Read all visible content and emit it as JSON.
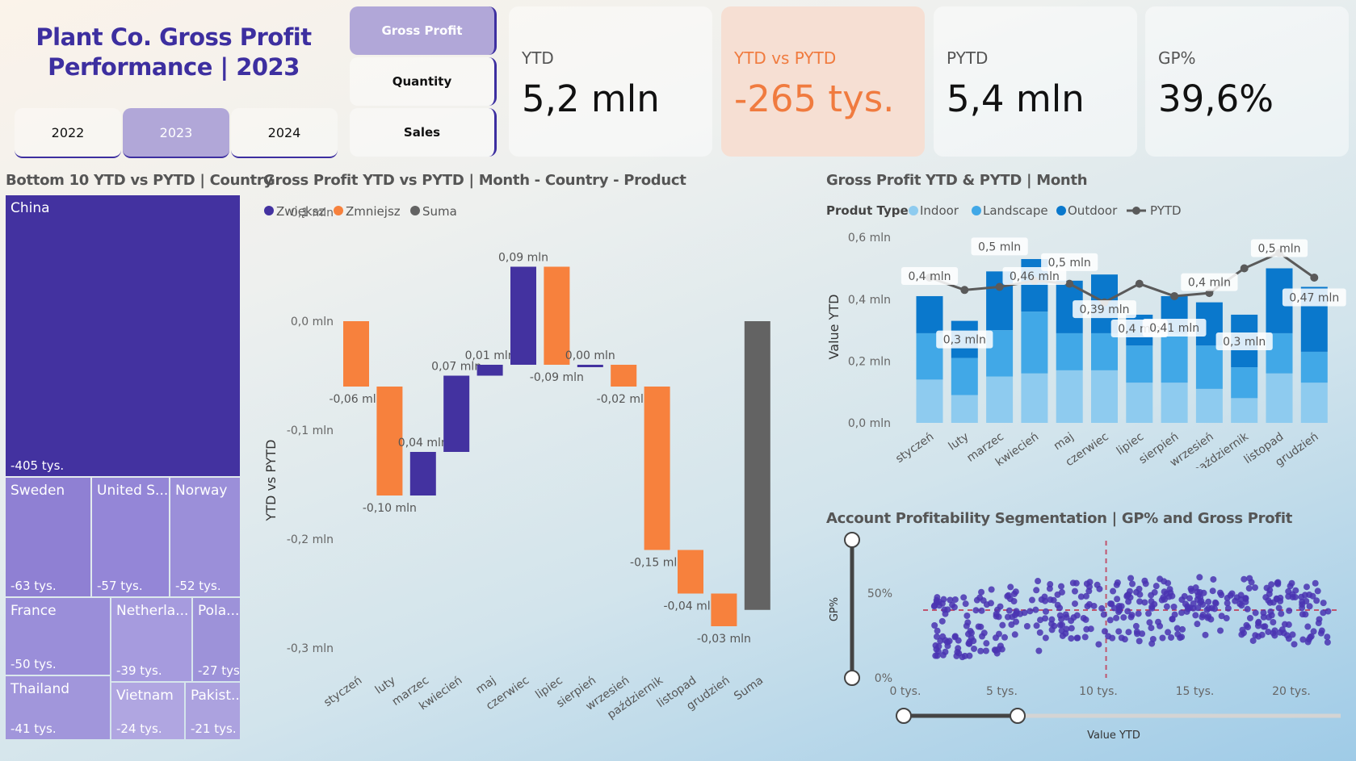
{
  "header": {
    "title_line1": "Plant Co. Gross Profit",
    "title_line2": "Performance | 2023",
    "years": [
      "2022",
      "2023",
      "2024"
    ],
    "active_year": "2023",
    "metrics": [
      "Gross Profit",
      "Quantity",
      "Sales"
    ],
    "active_metric": "Gross Profit"
  },
  "kpis": [
    {
      "label": "YTD",
      "value": "5,2 mln",
      "negative": false
    },
    {
      "label": "YTD vs PYTD",
      "value": "-265 tys.",
      "negative": true
    },
    {
      "label": "PYTD",
      "value": "5,4 mln",
      "negative": false
    },
    {
      "label": "GP%",
      "value": "39,6%",
      "negative": false
    }
  ],
  "treemap": {
    "title": "Bottom 10 YTD vs PYTD | Country",
    "tiles": [
      {
        "name": "China",
        "value": "-405 tys."
      },
      {
        "name": "Sweden",
        "value": "-63 tys."
      },
      {
        "name": "United S...",
        "value": "-57 tys."
      },
      {
        "name": "Norway",
        "value": "-52 tys."
      },
      {
        "name": "France",
        "value": "-50 tys."
      },
      {
        "name": "Netherla...",
        "value": "-39 tys."
      },
      {
        "name": "Pola...",
        "value": "-27 tys."
      },
      {
        "name": "Thailand",
        "value": "-41 tys."
      },
      {
        "name": "Vietnam",
        "value": "-24 tys."
      },
      {
        "name": "Pakist...",
        "value": "-21 tys."
      }
    ]
  },
  "waterfall_title": "Gross Profit YTD vs PYTD | Month - Country - Product",
  "combo_title": "Gross Profit YTD & PYTD | Month",
  "scatter_title": "Account Profitability Segmentation | GP% and Gross Profit",
  "chart_data": [
    {
      "type": "bar",
      "subtype": "waterfall",
      "title": "Gross Profit YTD vs PYTD | Month - Country - Product",
      "ylabel": "YTD vs PYTD",
      "legend": [
        "Zwiększ",
        "Zmniejsz",
        "Suma"
      ],
      "colors": {
        "increase": "#4332a0",
        "decrease": "#f7813d",
        "total": "#636363"
      },
      "categories": [
        "styczeń",
        "luty",
        "marzec",
        "kwiecień",
        "maj",
        "czerwiec",
        "lipiec",
        "sierpień",
        "wrzesień",
        "październik",
        "listopad",
        "grudzień",
        "Suma"
      ],
      "values": [
        -0.06,
        -0.1,
        0.04,
        0.07,
        0.01,
        0.09,
        -0.09,
        0.0,
        -0.02,
        -0.15,
        -0.04,
        -0.03,
        -0.265
      ],
      "labels": [
        "-0,06 mln",
        "-0,10 mln",
        "0,04 mln",
        "0,07 mln",
        "0,01 mln",
        "0,09 mln",
        "-0,09 mln",
        "0,00 mln",
        "-0,02 mln",
        "-0,15 mln",
        "-0,04 mln",
        "-0,03 mln",
        ""
      ],
      "ylim": [
        -0.3,
        0.1
      ],
      "yticks": [
        "0,1 mln",
        "0,0 mln",
        "-0,1 mln",
        "-0,2 mln",
        "-0,3 mln"
      ]
    },
    {
      "type": "bar",
      "subtype": "stacked-bar-with-line",
      "title": "Gross Profit YTD & PYTD | Month",
      "ylabel": "Value YTD",
      "legend_title": "Produt Type",
      "categories": [
        "styczeń",
        "luty",
        "marzec",
        "kwiecień",
        "maj",
        "czerwiec",
        "lipiec",
        "sierpień",
        "wrzesień",
        "październik",
        "listopad",
        "grudzień"
      ],
      "series": [
        {
          "name": "Indoor",
          "color": "#8ecbef",
          "values": [
            0.14,
            0.09,
            0.15,
            0.16,
            0.17,
            0.17,
            0.13,
            0.13,
            0.11,
            0.08,
            0.16,
            0.13
          ]
        },
        {
          "name": "Landscape",
          "color": "#41a8e7",
          "values": [
            0.15,
            0.12,
            0.15,
            0.2,
            0.12,
            0.12,
            0.12,
            0.16,
            0.14,
            0.1,
            0.13,
            0.1
          ]
        },
        {
          "name": "Outdoor",
          "color": "#0a78cc",
          "values": [
            0.12,
            0.12,
            0.19,
            0.17,
            0.17,
            0.19,
            0.1,
            0.12,
            0.14,
            0.17,
            0.21,
            0.21
          ]
        },
        {
          "name": "PYTD",
          "color": "#5a5a5a",
          "values": [
            0.47,
            0.43,
            0.44,
            0.46,
            0.45,
            0.39,
            0.45,
            0.41,
            0.42,
            0.5,
            0.55,
            0.47
          ]
        }
      ],
      "labels": [
        "0,4 mln",
        "0,3 mln",
        "0,5 mln",
        "0,46 mln",
        "0,5 mln",
        "0,39 mln",
        "0,4 mln",
        "0,41 mln",
        "0,4 mln",
        "0,3 mln",
        "0,5 mln",
        "0,47 mln"
      ],
      "ylim": [
        0,
        0.6
      ],
      "yticks": [
        "0,6 mln",
        "0,4 mln",
        "0,2 mln",
        "0,0 mln"
      ]
    },
    {
      "type": "scatter",
      "title": "Account Profitability Segmentation | GP% and Gross Profit",
      "xlabel": "Value YTD",
      "ylabel": "GP%",
      "xticks": [
        "0 tys.",
        "5 tys.",
        "10 tys.",
        "15 tys.",
        "20 tys."
      ],
      "yticks": [
        "50%",
        "0%"
      ],
      "xlim": [
        0,
        22000
      ],
      "ylim": [
        0,
        0.8
      ],
      "reference_lines": {
        "x": 10400,
        "y": 0.4
      },
      "point_color": "#4a34b2",
      "point_count": 420
    }
  ]
}
